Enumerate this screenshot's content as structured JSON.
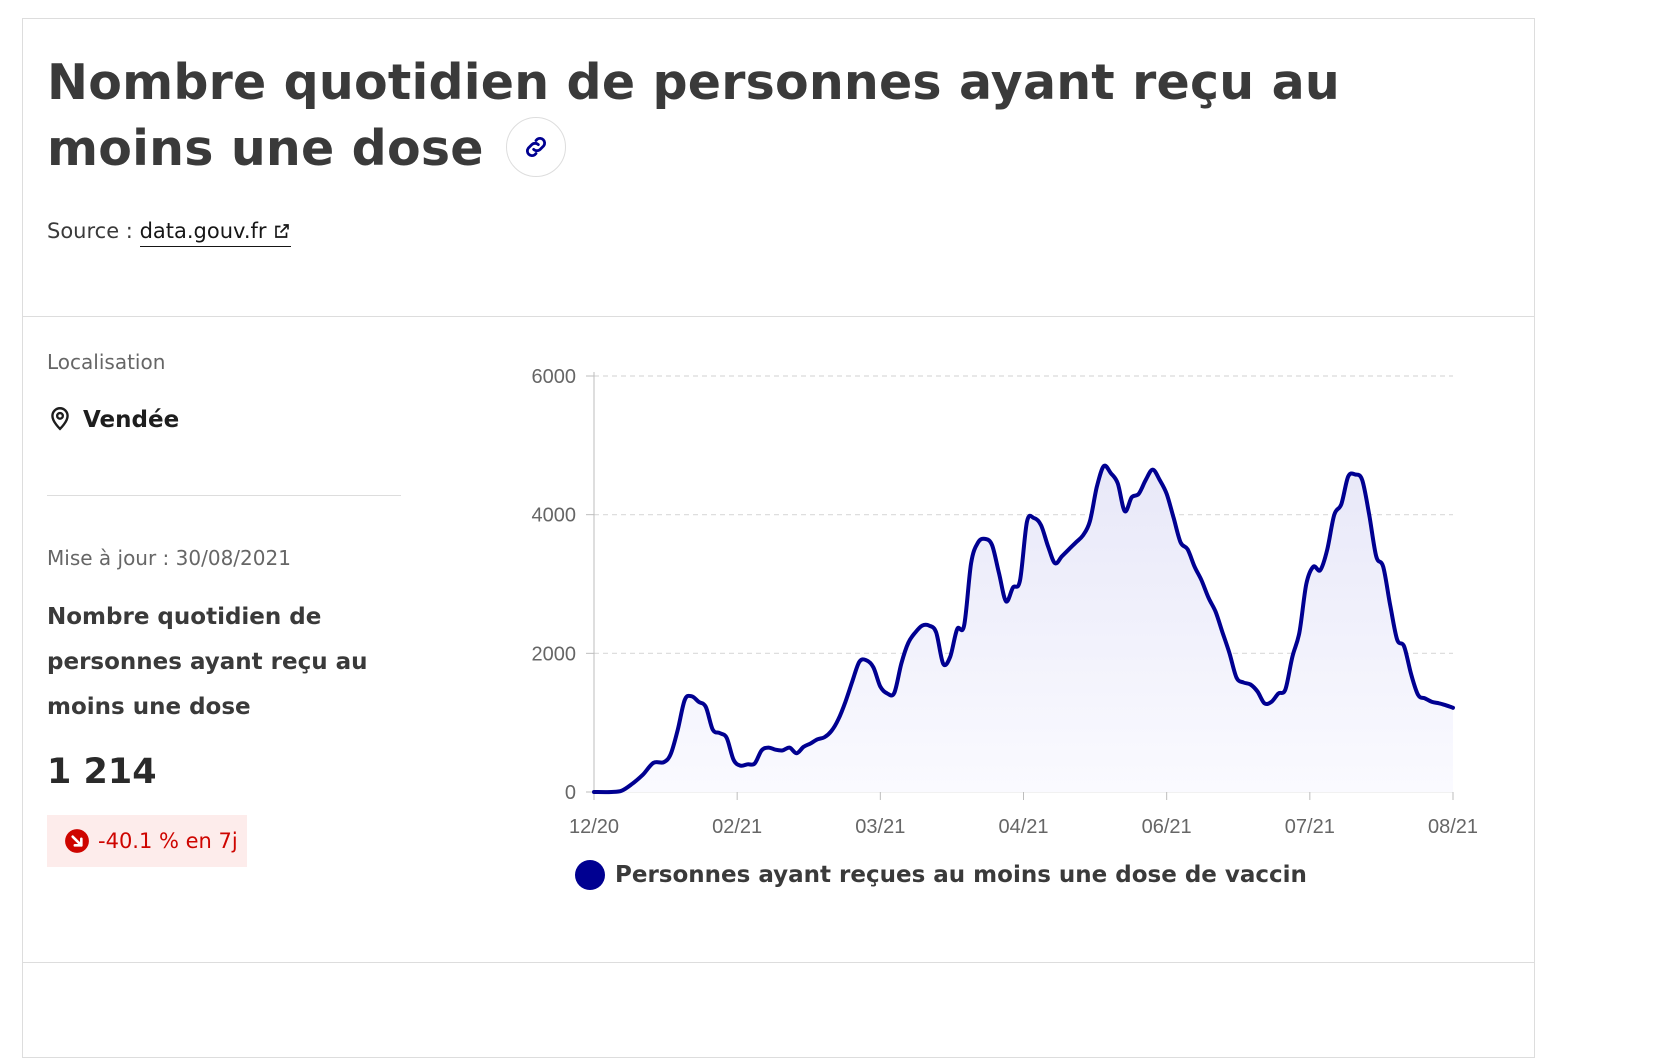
{
  "header": {
    "title": "Nombre quotidien de personnes ayant reçu au moins une dose",
    "source_prefix": "Source : ",
    "source_link": "data.gouv.fr"
  },
  "sidebar": {
    "location_label": "Localisation",
    "location_value": "Vendée",
    "update_label": "Mise à jour : 30/08/2021",
    "indicator_title": "Nombre quotidien de personnes ayant reçu au moins une dose",
    "indicator_value": "1 214",
    "trend_text": "-40.1 % en 7j"
  },
  "colors": {
    "accent": "#000091",
    "fill": "#f3f3fc",
    "trend_red": "#ce0500",
    "trend_bg": "#fdeceb"
  },
  "icons": [
    "link-icon",
    "external-link-icon",
    "map-pin-icon",
    "arrow-down-right-icon"
  ],
  "chart_data": {
    "type": "area",
    "title": "",
    "xlabel": "",
    "ylabel": "",
    "ylim": [
      0,
      6000
    ],
    "yticks": [
      0,
      2000,
      4000,
      6000
    ],
    "xticks": [
      "12/20",
      "02/21",
      "03/21",
      "04/21",
      "06/21",
      "07/21",
      "08/21"
    ],
    "xrange": [
      "2020-12-27",
      "2021-08-30"
    ],
    "grid": true,
    "legend_position": "bottom",
    "series": [
      {
        "name": "Personnes ayant reçues au moins une dose de vaccin",
        "color": "#000091",
        "points": [
          [
            "2020-12-27",
            0
          ],
          [
            "2021-01-01",
            0
          ],
          [
            "2021-01-04",
            20
          ],
          [
            "2021-01-07",
            120
          ],
          [
            "2021-01-10",
            250
          ],
          [
            "2021-01-13",
            420
          ],
          [
            "2021-01-16",
            430
          ],
          [
            "2021-01-18",
            550
          ],
          [
            "2021-01-20",
            900
          ],
          [
            "2021-01-22",
            1330
          ],
          [
            "2021-01-24",
            1380
          ],
          [
            "2021-01-26",
            1300
          ],
          [
            "2021-01-28",
            1230
          ],
          [
            "2021-01-30",
            900
          ],
          [
            "2021-02-01",
            850
          ],
          [
            "2021-02-03",
            780
          ],
          [
            "2021-02-05",
            460
          ],
          [
            "2021-02-07",
            380
          ],
          [
            "2021-02-09",
            400
          ],
          [
            "2021-02-11",
            410
          ],
          [
            "2021-02-13",
            600
          ],
          [
            "2021-02-15",
            640
          ],
          [
            "2021-02-17",
            610
          ],
          [
            "2021-02-19",
            600
          ],
          [
            "2021-02-21",
            640
          ],
          [
            "2021-02-23",
            560
          ],
          [
            "2021-02-25",
            650
          ],
          [
            "2021-02-27",
            700
          ],
          [
            "2021-03-01",
            760
          ],
          [
            "2021-03-03",
            790
          ],
          [
            "2021-03-05",
            880
          ],
          [
            "2021-03-07",
            1050
          ],
          [
            "2021-03-09",
            1300
          ],
          [
            "2021-03-11",
            1600
          ],
          [
            "2021-03-13",
            1880
          ],
          [
            "2021-03-15",
            1900
          ],
          [
            "2021-03-17",
            1800
          ],
          [
            "2021-03-19",
            1520
          ],
          [
            "2021-03-21",
            1420
          ],
          [
            "2021-03-23",
            1430
          ],
          [
            "2021-03-25",
            1850
          ],
          [
            "2021-03-27",
            2150
          ],
          [
            "2021-03-29",
            2300
          ],
          [
            "2021-03-31",
            2400
          ],
          [
            "2021-04-02",
            2400
          ],
          [
            "2021-04-04",
            2300
          ],
          [
            "2021-04-06",
            1850
          ],
          [
            "2021-04-08",
            1950
          ],
          [
            "2021-04-10",
            2350
          ],
          [
            "2021-04-12",
            2400
          ],
          [
            "2021-04-14",
            3300
          ],
          [
            "2021-04-16",
            3600
          ],
          [
            "2021-04-18",
            3650
          ],
          [
            "2021-04-20",
            3560
          ],
          [
            "2021-04-22",
            3150
          ],
          [
            "2021-04-24",
            2750
          ],
          [
            "2021-04-26",
            2950
          ],
          [
            "2021-04-28",
            3050
          ],
          [
            "2021-04-30",
            3900
          ],
          [
            "2021-05-02",
            3950
          ],
          [
            "2021-05-04",
            3850
          ],
          [
            "2021-05-06",
            3550
          ],
          [
            "2021-05-08",
            3300
          ],
          [
            "2021-05-10",
            3400
          ],
          [
            "2021-05-12",
            3500
          ],
          [
            "2021-05-14",
            3600
          ],
          [
            "2021-05-16",
            3700
          ],
          [
            "2021-05-18",
            3900
          ],
          [
            "2021-05-20",
            4400
          ],
          [
            "2021-05-22",
            4700
          ],
          [
            "2021-05-24",
            4600
          ],
          [
            "2021-05-26",
            4450
          ],
          [
            "2021-05-28",
            4050
          ],
          [
            "2021-05-30",
            4250
          ],
          [
            "2021-06-01",
            4300
          ],
          [
            "2021-06-03",
            4500
          ],
          [
            "2021-06-05",
            4650
          ],
          [
            "2021-06-07",
            4500
          ],
          [
            "2021-06-09",
            4300
          ],
          [
            "2021-06-11",
            3950
          ],
          [
            "2021-06-13",
            3600
          ],
          [
            "2021-06-15",
            3500
          ],
          [
            "2021-06-17",
            3250
          ],
          [
            "2021-06-19",
            3050
          ],
          [
            "2021-06-21",
            2800
          ],
          [
            "2021-06-23",
            2600
          ],
          [
            "2021-06-25",
            2300
          ],
          [
            "2021-06-27",
            2000
          ],
          [
            "2021-06-29",
            1650
          ],
          [
            "2021-07-01",
            1580
          ],
          [
            "2021-07-03",
            1550
          ],
          [
            "2021-07-05",
            1450
          ],
          [
            "2021-07-07",
            1280
          ],
          [
            "2021-07-09",
            1300
          ],
          [
            "2021-07-11",
            1420
          ],
          [
            "2021-07-13",
            1480
          ],
          [
            "2021-07-15",
            1950
          ],
          [
            "2021-07-17",
            2300
          ],
          [
            "2021-07-19",
            3000
          ],
          [
            "2021-07-21",
            3250
          ],
          [
            "2021-07-23",
            3200
          ],
          [
            "2021-07-25",
            3500
          ],
          [
            "2021-07-27",
            4000
          ],
          [
            "2021-07-29",
            4150
          ],
          [
            "2021-07-31",
            4550
          ],
          [
            "2021-08-02",
            4580
          ],
          [
            "2021-08-04",
            4500
          ],
          [
            "2021-08-06",
            4000
          ],
          [
            "2021-08-08",
            3400
          ],
          [
            "2021-08-10",
            3250
          ],
          [
            "2021-08-12",
            2700
          ],
          [
            "2021-08-14",
            2200
          ],
          [
            "2021-08-16",
            2100
          ],
          [
            "2021-08-18",
            1700
          ],
          [
            "2021-08-20",
            1400
          ],
          [
            "2021-08-22",
            1350
          ],
          [
            "2021-08-24",
            1300
          ],
          [
            "2021-08-26",
            1280
          ],
          [
            "2021-08-28",
            1250
          ],
          [
            "2021-08-30",
            1214
          ]
        ]
      }
    ]
  }
}
